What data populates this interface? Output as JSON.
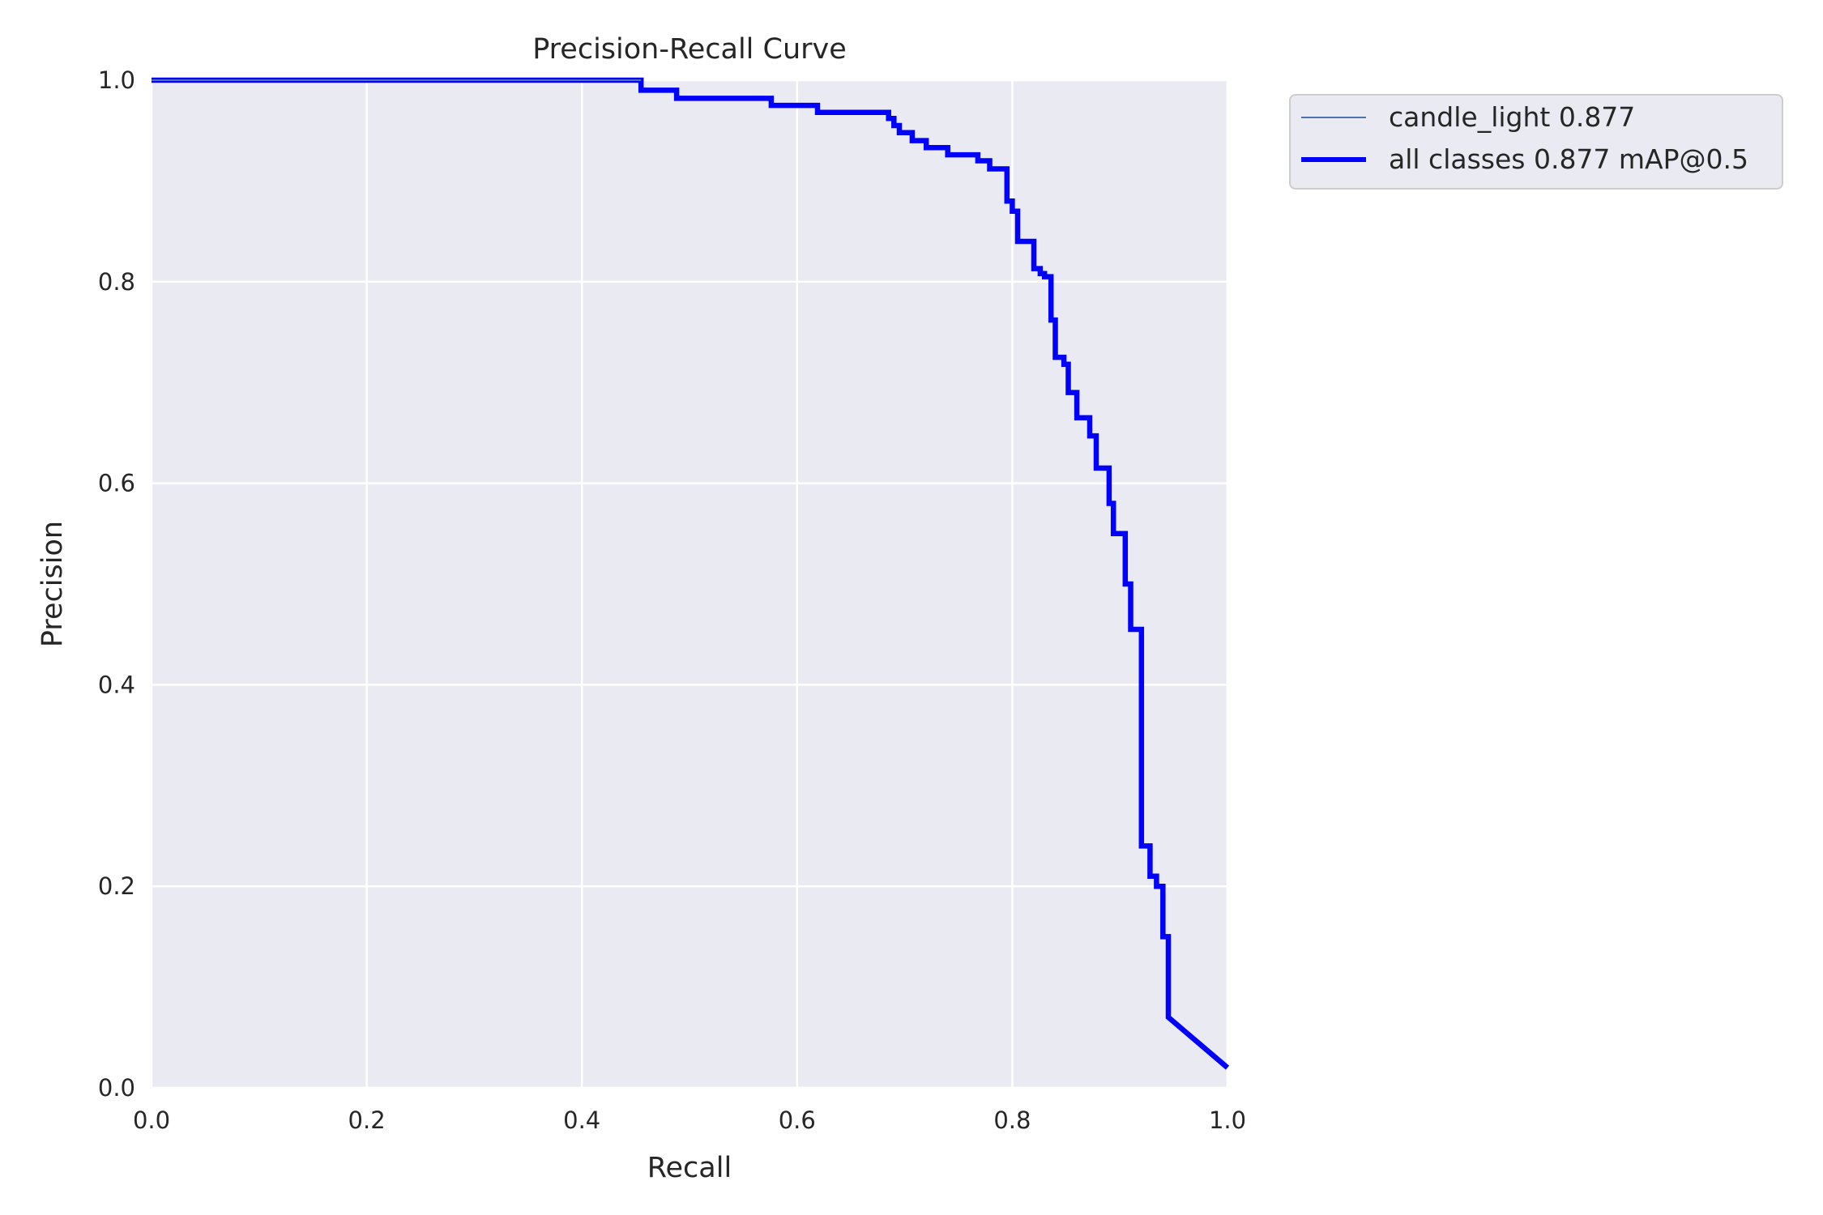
{
  "chart_data": {
    "type": "line",
    "title": "Precision-Recall Curve",
    "xlabel": "Recall",
    "ylabel": "Precision",
    "xlim": [
      0,
      1
    ],
    "ylim": [
      0,
      1
    ],
    "xticks": [
      "0.0",
      "0.2",
      "0.4",
      "0.6",
      "0.8",
      "1.0"
    ],
    "yticks": [
      "0.0",
      "0.2",
      "0.4",
      "0.6",
      "0.8",
      "1.0"
    ],
    "grid": true,
    "legend_position": "outside-top-right",
    "series": [
      {
        "name": "candle_light 0.877",
        "color": "#4c72b0",
        "x": [
          0,
          0.455
        ],
        "y": [
          1.0,
          1.0
        ]
      },
      {
        "name": "all classes 0.877 mAP@0.5",
        "color": "#0000ff",
        "x": [
          0,
          0.455,
          0.455,
          0.488,
          0.488,
          0.576,
          0.576,
          0.619,
          0.619,
          0.685,
          0.685,
          0.69,
          0.69,
          0.695,
          0.695,
          0.707,
          0.707,
          0.72,
          0.72,
          0.74,
          0.74,
          0.768,
          0.768,
          0.779,
          0.779,
          0.795,
          0.795,
          0.8,
          0.8,
          0.805,
          0.805,
          0.82,
          0.82,
          0.826,
          0.826,
          0.83,
          0.83,
          0.836,
          0.836,
          0.84,
          0.84,
          0.848,
          0.848,
          0.852,
          0.852,
          0.86,
          0.86,
          0.872,
          0.872,
          0.878,
          0.878,
          0.89,
          0.89,
          0.894,
          0.894,
          0.905,
          0.905,
          0.91,
          0.91,
          0.92,
          0.92,
          0.928,
          0.928,
          0.934,
          0.934,
          0.94,
          0.94,
          0.945,
          0.945,
          1.0
        ],
        "y": [
          1.0,
          1.0,
          0.99,
          0.99,
          0.982,
          0.982,
          0.975,
          0.975,
          0.968,
          0.968,
          0.962,
          0.962,
          0.955,
          0.955,
          0.948,
          0.948,
          0.94,
          0.94,
          0.933,
          0.933,
          0.926,
          0.926,
          0.92,
          0.92,
          0.912,
          0.912,
          0.88,
          0.88,
          0.87,
          0.87,
          0.84,
          0.84,
          0.813,
          0.813,
          0.808,
          0.808,
          0.805,
          0.805,
          0.762,
          0.762,
          0.725,
          0.725,
          0.718,
          0.718,
          0.69,
          0.69,
          0.665,
          0.665,
          0.647,
          0.647,
          0.615,
          0.615,
          0.58,
          0.58,
          0.55,
          0.55,
          0.5,
          0.5,
          0.455,
          0.455,
          0.24,
          0.24,
          0.21,
          0.21,
          0.2,
          0.2,
          0.15,
          0.15,
          0.07,
          0.02
        ]
      }
    ]
  }
}
